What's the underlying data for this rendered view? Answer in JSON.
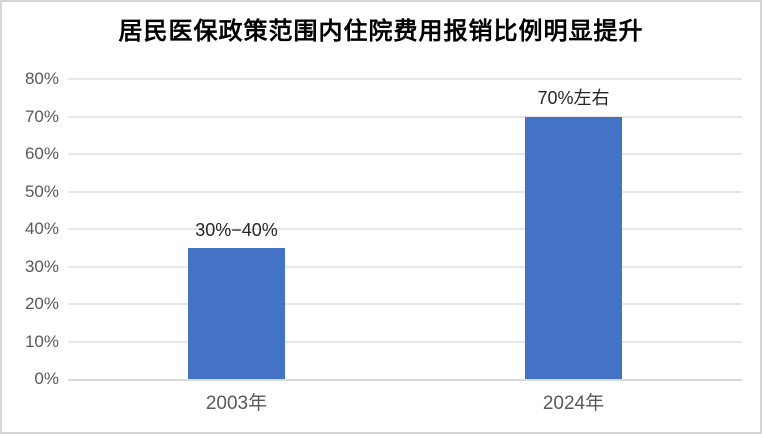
{
  "chart_data": {
    "type": "bar",
    "title": "居民医保政策范围内住院费用报销比例明显提升",
    "categories": [
      "2003年",
      "2024年"
    ],
    "values": [
      35,
      70
    ],
    "data_labels": [
      "30%−40%",
      "70%左右"
    ],
    "ylim": [
      0,
      80
    ],
    "ytick_step": 10,
    "ytick_labels": [
      "0%",
      "10%",
      "20%",
      "30%",
      "40%",
      "50%",
      "60%",
      "70%",
      "80%"
    ],
    "grid": true,
    "legend": "none",
    "xlabel": "",
    "ylabel": "",
    "bar_color": "#4472C4",
    "gridline_color": "#e7e7e7",
    "axis_line_color": "#d9d9d9",
    "tick_label_color": "#595959",
    "title_color": "#000000"
  }
}
